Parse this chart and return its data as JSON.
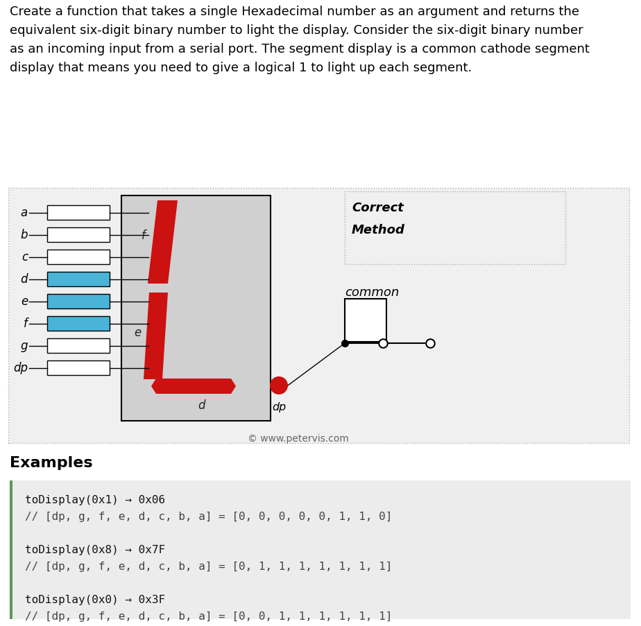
{
  "bg_color": "#ffffff",
  "header_lines": [
    "Create a function that takes a single Hexadecimal number as an argument and returns the",
    "equivalent six-digit binary number to light the display. Consider the six-digit binary number",
    "as an incoming input from a serial port. The segment display is a common cathode segment",
    "display that means you need to give a logical 1 to light up each segment."
  ],
  "segment_labels": [
    "a",
    "b",
    "c",
    "d",
    "e",
    "f",
    "g",
    "dp"
  ],
  "active_segments_idx": [
    3,
    4,
    5
  ],
  "blue_color": "#4ab4d8",
  "red_color": "#cc1111",
  "diag_bg": "#f0f0f0",
  "disp_bg": "#d0d0d0",
  "correct_method_text_line1": "Correct",
  "correct_method_text_line2": "Method",
  "common_text": "common",
  "copyright_text": "© www.petervis.com",
  "examples_title": "Examples",
  "code_lines": [
    "toDisplay(0x1) → 0x06",
    "// [dp, g, f, e, d, c, b, a] = [0, 0, 0, 0, 0, 1, 1, 0]",
    "",
    "toDisplay(0x8) → 0x7F",
    "// [dp, g, f, e, d, c, b, a] = [0, 1, 1, 1, 1, 1, 1, 1]",
    "",
    "toDisplay(0x0) → 0x3F",
    "// [dp, g, f, e, d, c, b, a] = [0, 0, 1, 1, 1, 1, 1, 1]"
  ],
  "code_green_bar": "#5a9a5a",
  "code_bg": "#ececec"
}
